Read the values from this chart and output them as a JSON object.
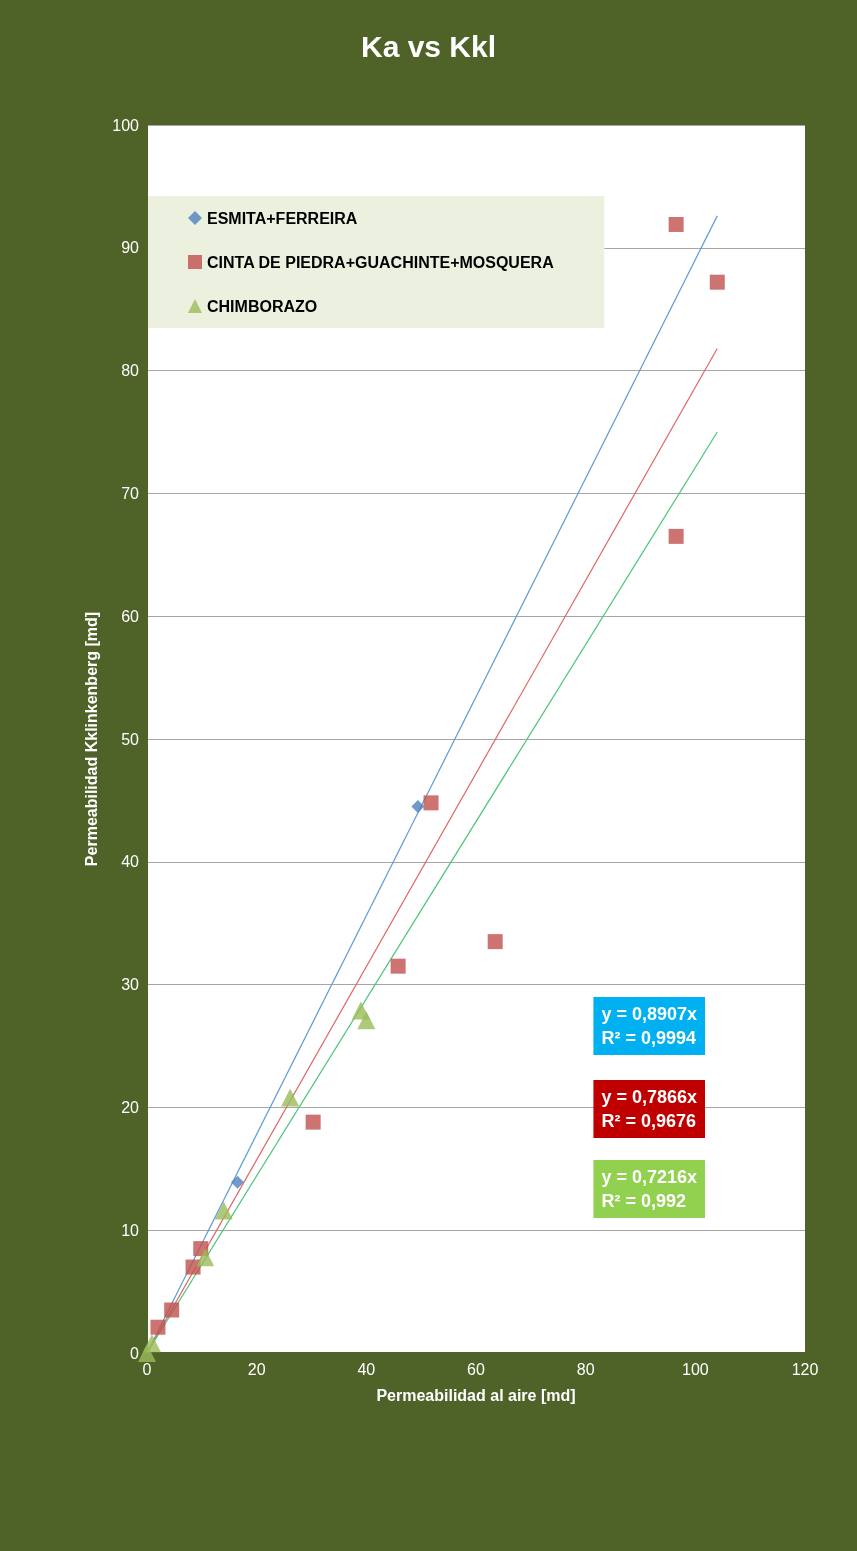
{
  "chart_data": {
    "type": "scatter",
    "title": "Ka vs Kkl",
    "xlabel": "Permeabilidad al aire [md]",
    "ylabel": "Permeabilidad Kklinkenberg [md]",
    "xlim": [
      0,
      120
    ],
    "xticks": [
      0,
      20,
      40,
      60,
      80,
      100,
      120
    ],
    "ylim": [
      0,
      100
    ],
    "yticks": [
      0,
      10,
      20,
      30,
      40,
      50,
      60,
      70,
      80,
      90,
      100
    ],
    "grid": "y",
    "legend": "top left",
    "series": [
      {
        "name": "ESMITA+FERREIRA",
        "color": "#4f81bd",
        "marker": "diamond",
        "x": [
          16.5,
          49.4
        ],
        "values": [
          13.9,
          44.5
        ]
      },
      {
        "name": "CINTA DE PIEDRA+GUACHINTE+MOSQUERA",
        "color": "#c0504d",
        "marker": "square",
        "x": [
          2,
          4.5,
          8.4,
          9.8,
          30.3,
          45.8,
          51.8,
          63.5,
          96.5,
          96.5,
          104
        ],
        "values": [
          2.1,
          3.5,
          7,
          8.5,
          18.8,
          31.5,
          44.8,
          33.5,
          91.9,
          66.5,
          87.2
        ]
      },
      {
        "name": "CHIMBORAZO",
        "color": "#9bbb59",
        "marker": "triangle",
        "x": [
          0,
          0.9,
          10.6,
          14,
          26.1,
          39,
          40
        ],
        "values": [
          0,
          0.8,
          7.8,
          11.6,
          20.8,
          27.9,
          27.1
        ]
      },
      {
        "type": "line",
        "color": "#5b9bd5",
        "marker": "none",
        "x": [
          0,
          104
        ],
        "values": [
          0,
          92.6
        ]
      },
      {
        "type": "line",
        "color": "#e06666",
        "marker": "none",
        "x": [
          0,
          104
        ],
        "values": [
          0,
          81.8
        ]
      },
      {
        "type": "line",
        "color": "#4cc47a",
        "marker": "none",
        "x": [
          0,
          104
        ],
        "values": [
          0,
          75.0
        ]
      }
    ],
    "annotations": [
      "y = 0,8907x\nR² = 0,9994",
      "y = 0,7866x\nR² = 0,9676",
      "y = 0,7216x\nR² = 0,992"
    ]
  }
}
